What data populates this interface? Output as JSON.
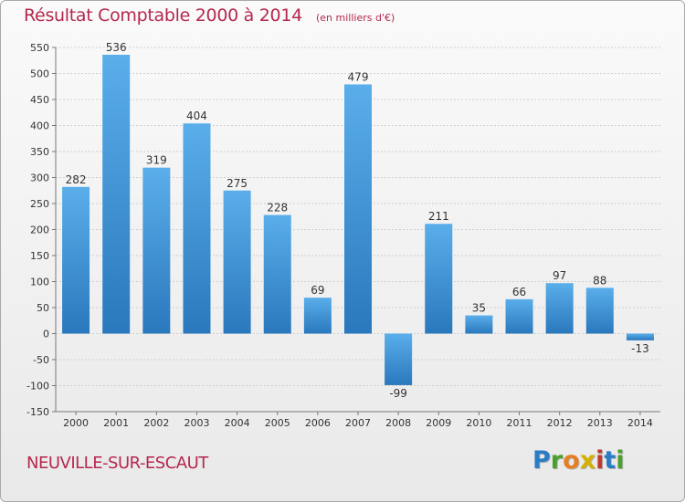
{
  "title": "Résultat Comptable 2000 à 2014",
  "subtitle": "(en milliers d'€)",
  "city": "NEUVILLE-SUR-ESCAUT",
  "logo": {
    "letters": [
      "P",
      "r",
      "o",
      "x",
      "i",
      "t",
      "i"
    ],
    "colors": [
      "#2a7cc7",
      "#4aa02c",
      "#e67e22",
      "#d4b000",
      "#c0392b",
      "#2a7cc7",
      "#4aa02c"
    ]
  },
  "colors": {
    "bar_top": "#5aaeea",
    "bar_bottom": "#2a78bd",
    "grid": "#cfcfcf",
    "axis": "#777777",
    "title": "#b5284e"
  },
  "chart_data": {
    "type": "bar",
    "categories": [
      "2000",
      "2001",
      "2002",
      "2003",
      "2004",
      "2005",
      "2006",
      "2007",
      "2008",
      "2009",
      "2010",
      "2011",
      "2012",
      "2013",
      "2014"
    ],
    "values": [
      282,
      536,
      319,
      404,
      275,
      228,
      69,
      479,
      -99,
      211,
      35,
      66,
      97,
      88,
      -13
    ],
    "data_labels": [
      "282",
      "536",
      "319",
      "404",
      "275",
      "228",
      "69",
      "479",
      "-99",
      "211",
      "35",
      "66",
      "97",
      "88",
      "-13"
    ],
    "title": "Résultat Comptable 2000 à 2014",
    "xlabel": "",
    "ylabel": "",
    "ylim": [
      -150,
      550
    ],
    "yticks": [
      550,
      500,
      450,
      400,
      350,
      300,
      250,
      200,
      150,
      100,
      50,
      0,
      -50,
      -100,
      -150
    ],
    "ytick_labels": [
      "550",
      "500",
      "450",
      "400",
      "350",
      "300",
      "250",
      "200",
      "150",
      "100",
      "50",
      "0",
      "-50",
      "-100",
      "-150"
    ],
    "grid": true,
    "legend": "none"
  }
}
